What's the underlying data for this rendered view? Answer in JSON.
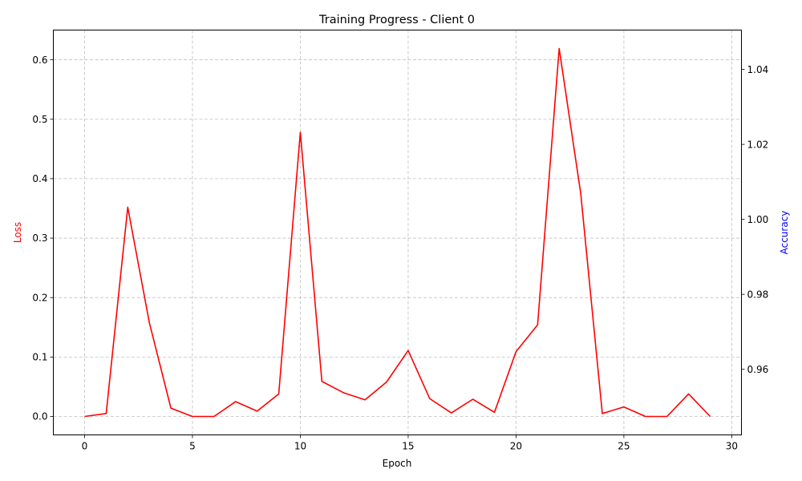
{
  "chart_data": {
    "type": "line",
    "title": "Training Progress - Client 0",
    "xlabel": "Epoch",
    "ylabel_left": "Loss",
    "ylabel_right": "Accuracy",
    "xlim": [
      -1.45,
      30.45
    ],
    "ylim_left": [
      -0.031,
      0.65
    ],
    "ylim_right": [
      0.9425,
      1.0505
    ],
    "x_ticks": [
      0,
      5,
      10,
      15,
      20,
      25,
      30
    ],
    "y_ticks_left": [
      0.0,
      0.1,
      0.2,
      0.3,
      0.4,
      0.5,
      0.6
    ],
    "y_ticks_right": [
      0.96,
      0.98,
      1.0,
      1.02,
      1.04
    ],
    "grid": true,
    "colors": {
      "loss": "#ff0000",
      "left_label": "#ff0000",
      "right_label": "#0000ff",
      "grid": "#b0b0b0",
      "axis": "#000000"
    },
    "series": [
      {
        "name": "Loss",
        "axis": "left",
        "x": [
          0,
          1,
          2,
          3,
          4,
          5,
          6,
          7,
          8,
          9,
          10,
          11,
          12,
          13,
          14,
          15,
          16,
          17,
          18,
          19,
          20,
          21,
          22,
          23,
          24,
          25,
          26,
          27,
          28,
          29
        ],
        "values": [
          0.0,
          0.005,
          0.352,
          0.158,
          0.014,
          0.0,
          0.0,
          0.025,
          0.009,
          0.038,
          0.478,
          0.059,
          0.04,
          0.028,
          0.058,
          0.111,
          0.03,
          0.006,
          0.029,
          0.007,
          0.109,
          0.154,
          0.619,
          0.375,
          0.005,
          0.016,
          0.0,
          0.0,
          0.038,
          0.0
        ]
      }
    ]
  }
}
